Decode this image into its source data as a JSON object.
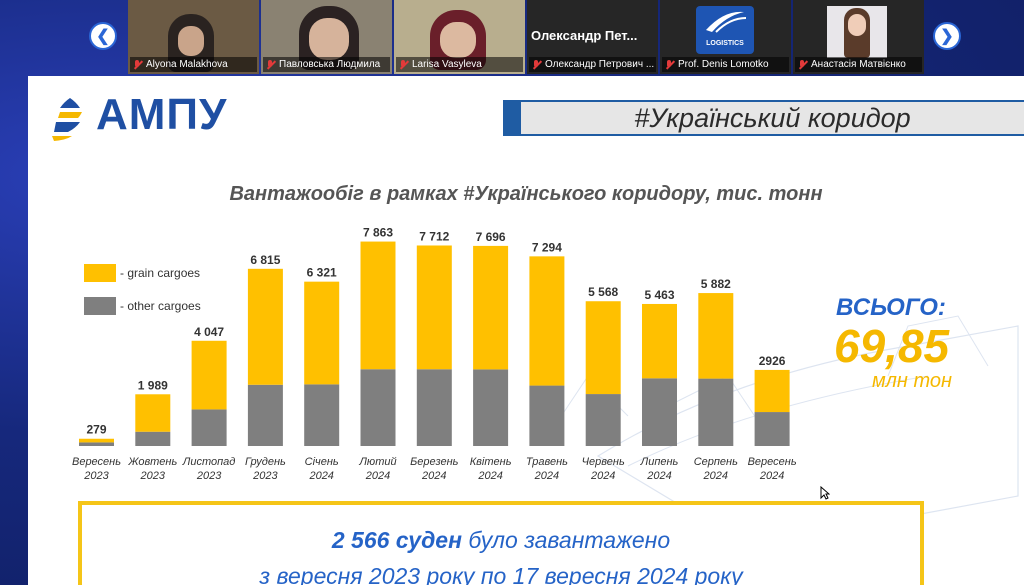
{
  "meeting": {
    "participants": [
      {
        "name": "Alyona Malakhova",
        "muted": true
      },
      {
        "name": "Павловська Людмила",
        "muted": true
      },
      {
        "name": "Larisa Vasyleva",
        "muted": true
      },
      {
        "name": "Олександр Петрович ...",
        "muted": true,
        "display_title": "Олександр Пет..."
      },
      {
        "name": "Prof. Denis Lomotko",
        "muted": true,
        "avatar_text": "LOGISTICS"
      },
      {
        "name": "Анастасія Матвієнко",
        "muted": true
      }
    ]
  },
  "slide": {
    "logo_text": "АМПУ",
    "banner": "#Український коридор",
    "legend": {
      "grain": "- grain cargoes",
      "other": "- other cargoes"
    },
    "total": {
      "label": "ВСЬОГО:",
      "value": "69,85",
      "unit": "млн тон"
    },
    "note": {
      "line1_bold": "2 566 суден",
      "line1_rest": " було завантажено",
      "line2": "з вересня 2023 року по 17 вересня 2024 року"
    },
    "colors": {
      "grain": "#FFC000",
      "other": "#7F7F7F",
      "accent": "#1f5ca3",
      "total": "#F5B800"
    }
  },
  "chart_data": {
    "type": "bar",
    "stacked": true,
    "title": "Вантажообіг в рамках #Українського коридору, тис. тонн",
    "categories": [
      [
        "Вересень",
        "2023"
      ],
      [
        "Жовтень",
        "2023"
      ],
      [
        "Листопад",
        "2023"
      ],
      [
        "Грудень",
        "2023"
      ],
      [
        "Січень",
        "2024"
      ],
      [
        "Лютий",
        "2024"
      ],
      [
        "Березень",
        "2024"
      ],
      [
        "Квітень",
        "2024"
      ],
      [
        "Травень",
        "2024"
      ],
      [
        "Червень",
        "2024"
      ],
      [
        "Липень",
        "2024"
      ],
      [
        "Серпень",
        "2024"
      ],
      [
        "Вересень",
        "2024"
      ]
    ],
    "totals_labels": [
      "279",
      "1 989",
      "4 047",
      "6 815",
      "6 321",
      "7 863",
      "7 712",
      "7 696",
      "7 294",
      "5 568",
      "5 463",
      "5 882",
      "2926"
    ],
    "series": [
      {
        "name": "grain cargoes",
        "values": [
          140,
          1440,
          2640,
          4460,
          3950,
          4910,
          4760,
          4750,
          4970,
          3570,
          2860,
          3290,
          1620
        ]
      },
      {
        "name": "other cargoes",
        "values": [
          139,
          549,
          1407,
          2355,
          2371,
          2953,
          2952,
          2946,
          2324,
          1998,
          2603,
          2592,
          1306
        ]
      }
    ],
    "ylim": [
      0,
      8000
    ],
    "legend_position": "left"
  }
}
